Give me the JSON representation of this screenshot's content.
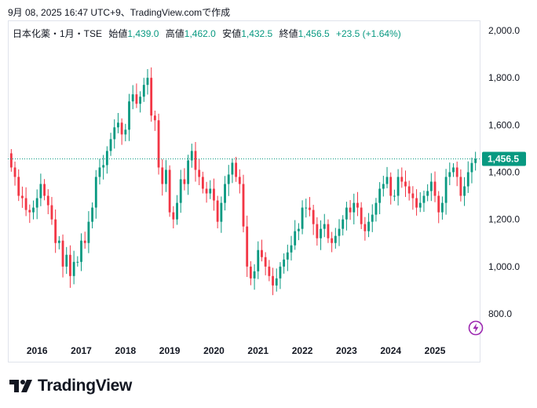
{
  "header": {
    "timestamp": "9月 08, 2025 16:47 UTC+9、TradingView.comで作成"
  },
  "legend": {
    "symbol": "日本化薬・1月・TSE",
    "open_label": "始値",
    "open": "1,439.0",
    "high_label": "高値",
    "high": "1,462.0",
    "low_label": "安値",
    "low": "1,432.5",
    "close_label": "終値",
    "close": "1,456.5",
    "change": "+23.5 (+1.64%)"
  },
  "price_tag": "1,456.5",
  "brand": {
    "name": "TradingView"
  },
  "icons": {
    "logo": "tradingview-logo-icon",
    "lightning": "lightning-icon"
  },
  "colors": {
    "up": "#089981",
    "down": "#f23645",
    "accent": "#9c27b0"
  },
  "chart_data": {
    "type": "candlestick",
    "interval": "1M",
    "ylim": [
      700,
      2030
    ],
    "yticks": [
      800,
      1000,
      1200,
      1400,
      1600,
      1800,
      2000
    ],
    "ytick_labels": [
      "800.0",
      "1,000.0",
      "1,200.0",
      "1,400.0",
      "1,600.0",
      "1,800.0",
      "2,000.0"
    ],
    "xtick_labels": [
      "2016",
      "2017",
      "2018",
      "2019",
      "2020",
      "2021",
      "2022",
      "2023",
      "2024",
      "2025"
    ],
    "last_price": 1456.5,
    "start": "2015-06",
    "closes": [
      1420,
      1380,
      1300,
      1290,
      1240,
      1230,
      1250,
      1290,
      1350,
      1300,
      1260,
      1200,
      1100,
      1110,
      1000,
      1050,
      960,
      1020,
      1020,
      1110,
      1100,
      1190,
      1250,
      1380,
      1420,
      1430,
      1490,
      1540,
      1590,
      1610,
      1560,
      1580,
      1700,
      1730,
      1690,
      1720,
      1770,
      1800,
      1640,
      1620,
      1420,
      1350,
      1410,
      1230,
      1200,
      1270,
      1370,
      1350,
      1450,
      1490,
      1410,
      1380,
      1330,
      1310,
      1330,
      1280,
      1190,
      1270,
      1350,
      1390,
      1440,
      1380,
      1350,
      1170,
      1000,
      950,
      980,
      1070,
      1040,
      1000,
      960,
      920,
      950,
      1000,
      1030,
      1060,
      1090,
      1150,
      1160,
      1250,
      1250,
      1240,
      1180,
      1120,
      1160,
      1180,
      1120,
      1100,
      1130,
      1160,
      1200,
      1250,
      1230,
      1270,
      1250,
      1180,
      1150,
      1190,
      1220,
      1270,
      1330,
      1350,
      1380,
      1300,
      1300,
      1380,
      1360,
      1340,
      1310,
      1290,
      1250,
      1270,
      1300,
      1320,
      1360,
      1300,
      1230,
      1270,
      1380,
      1400,
      1420,
      1380,
      1300,
      1340,
      1400,
      1439,
      1456.5
    ]
  }
}
